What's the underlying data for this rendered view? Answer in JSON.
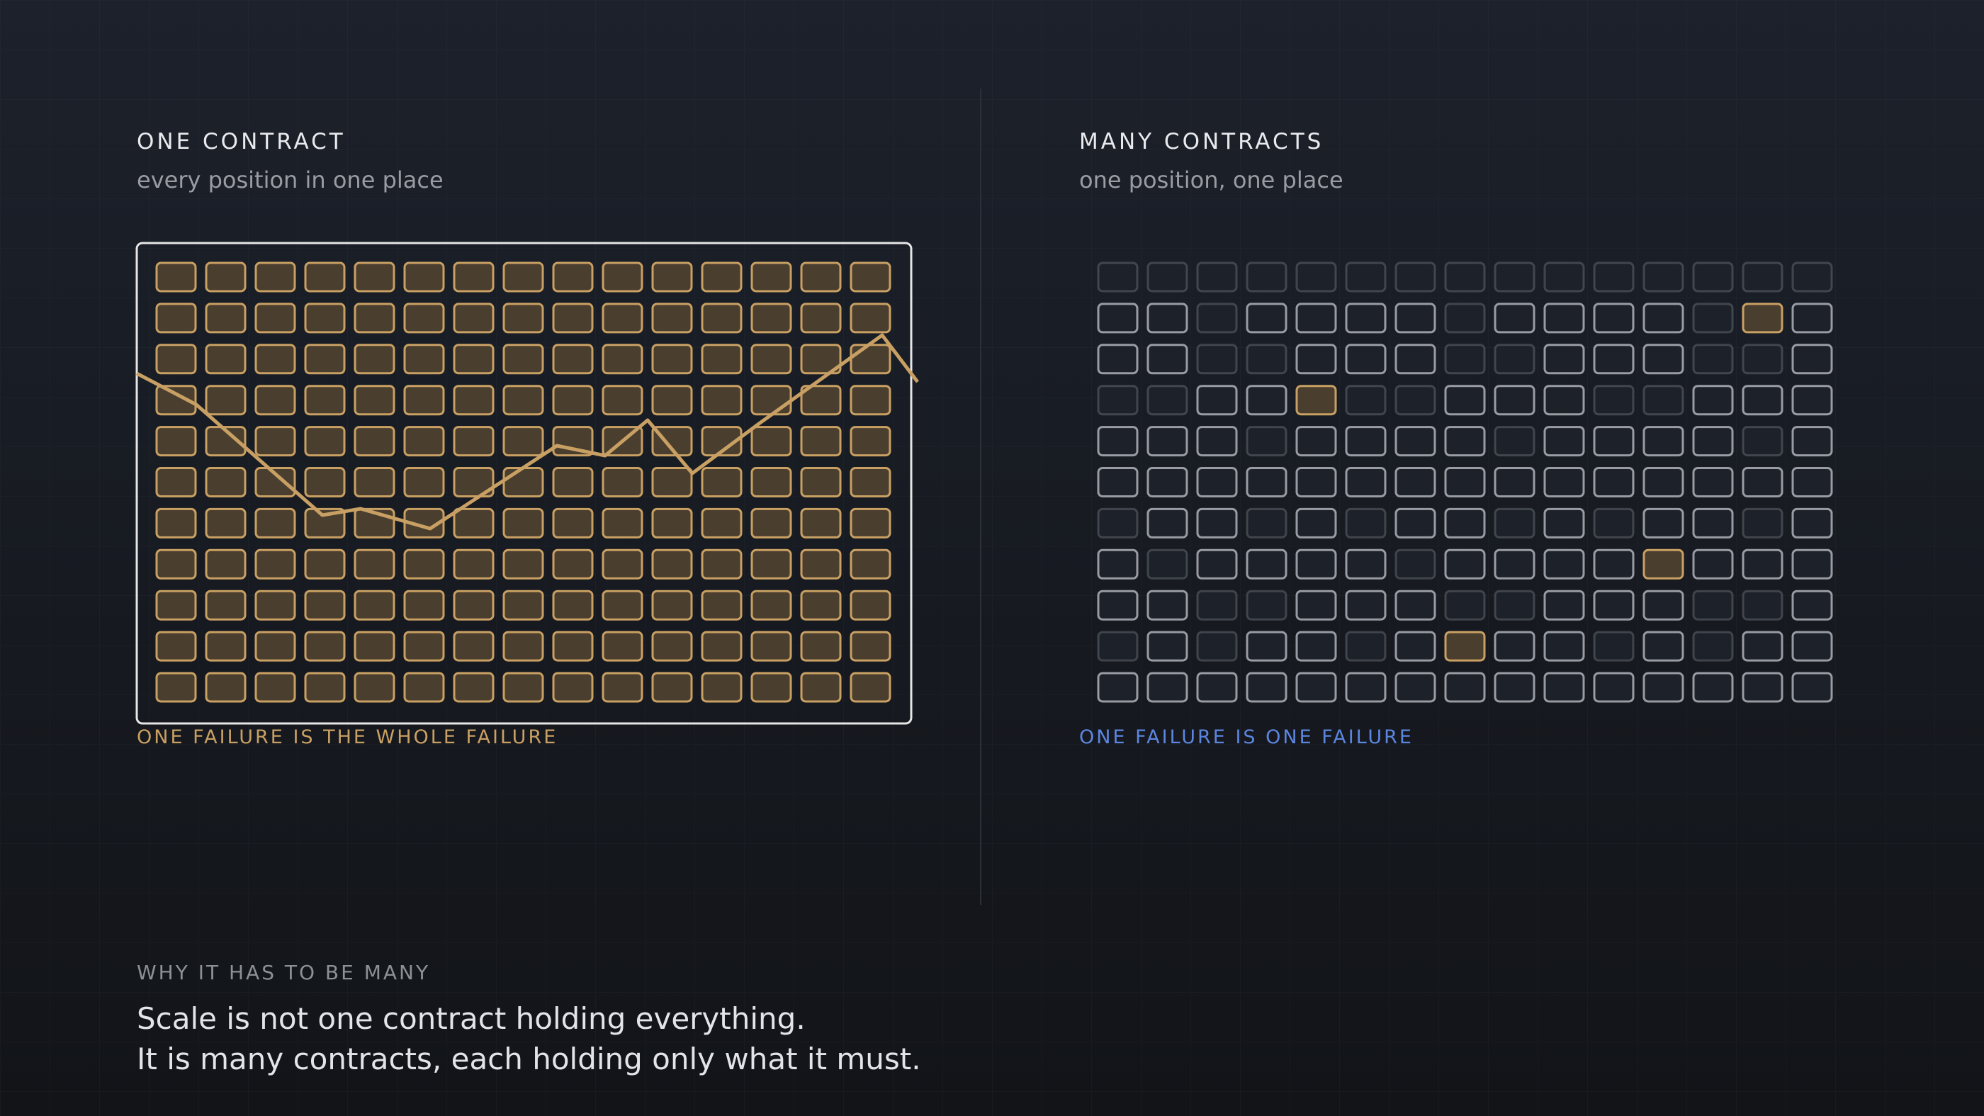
{
  "left": {
    "title": "ONE CONTRACT",
    "subtitle": "every position in one place",
    "caption": "ONE FAILURE IS THE WHOLE FAILURE"
  },
  "right": {
    "title": "MANY CONTRACTS",
    "subtitle": "one position, one place",
    "caption": "ONE FAILURE IS ONE FAILURE"
  },
  "footer": {
    "heading": "WHY IT HAS TO BE MANY",
    "lines": [
      "Scale is not one contract holding everything.",
      "It is many contracts, each holding only what it must."
    ]
  }
}
